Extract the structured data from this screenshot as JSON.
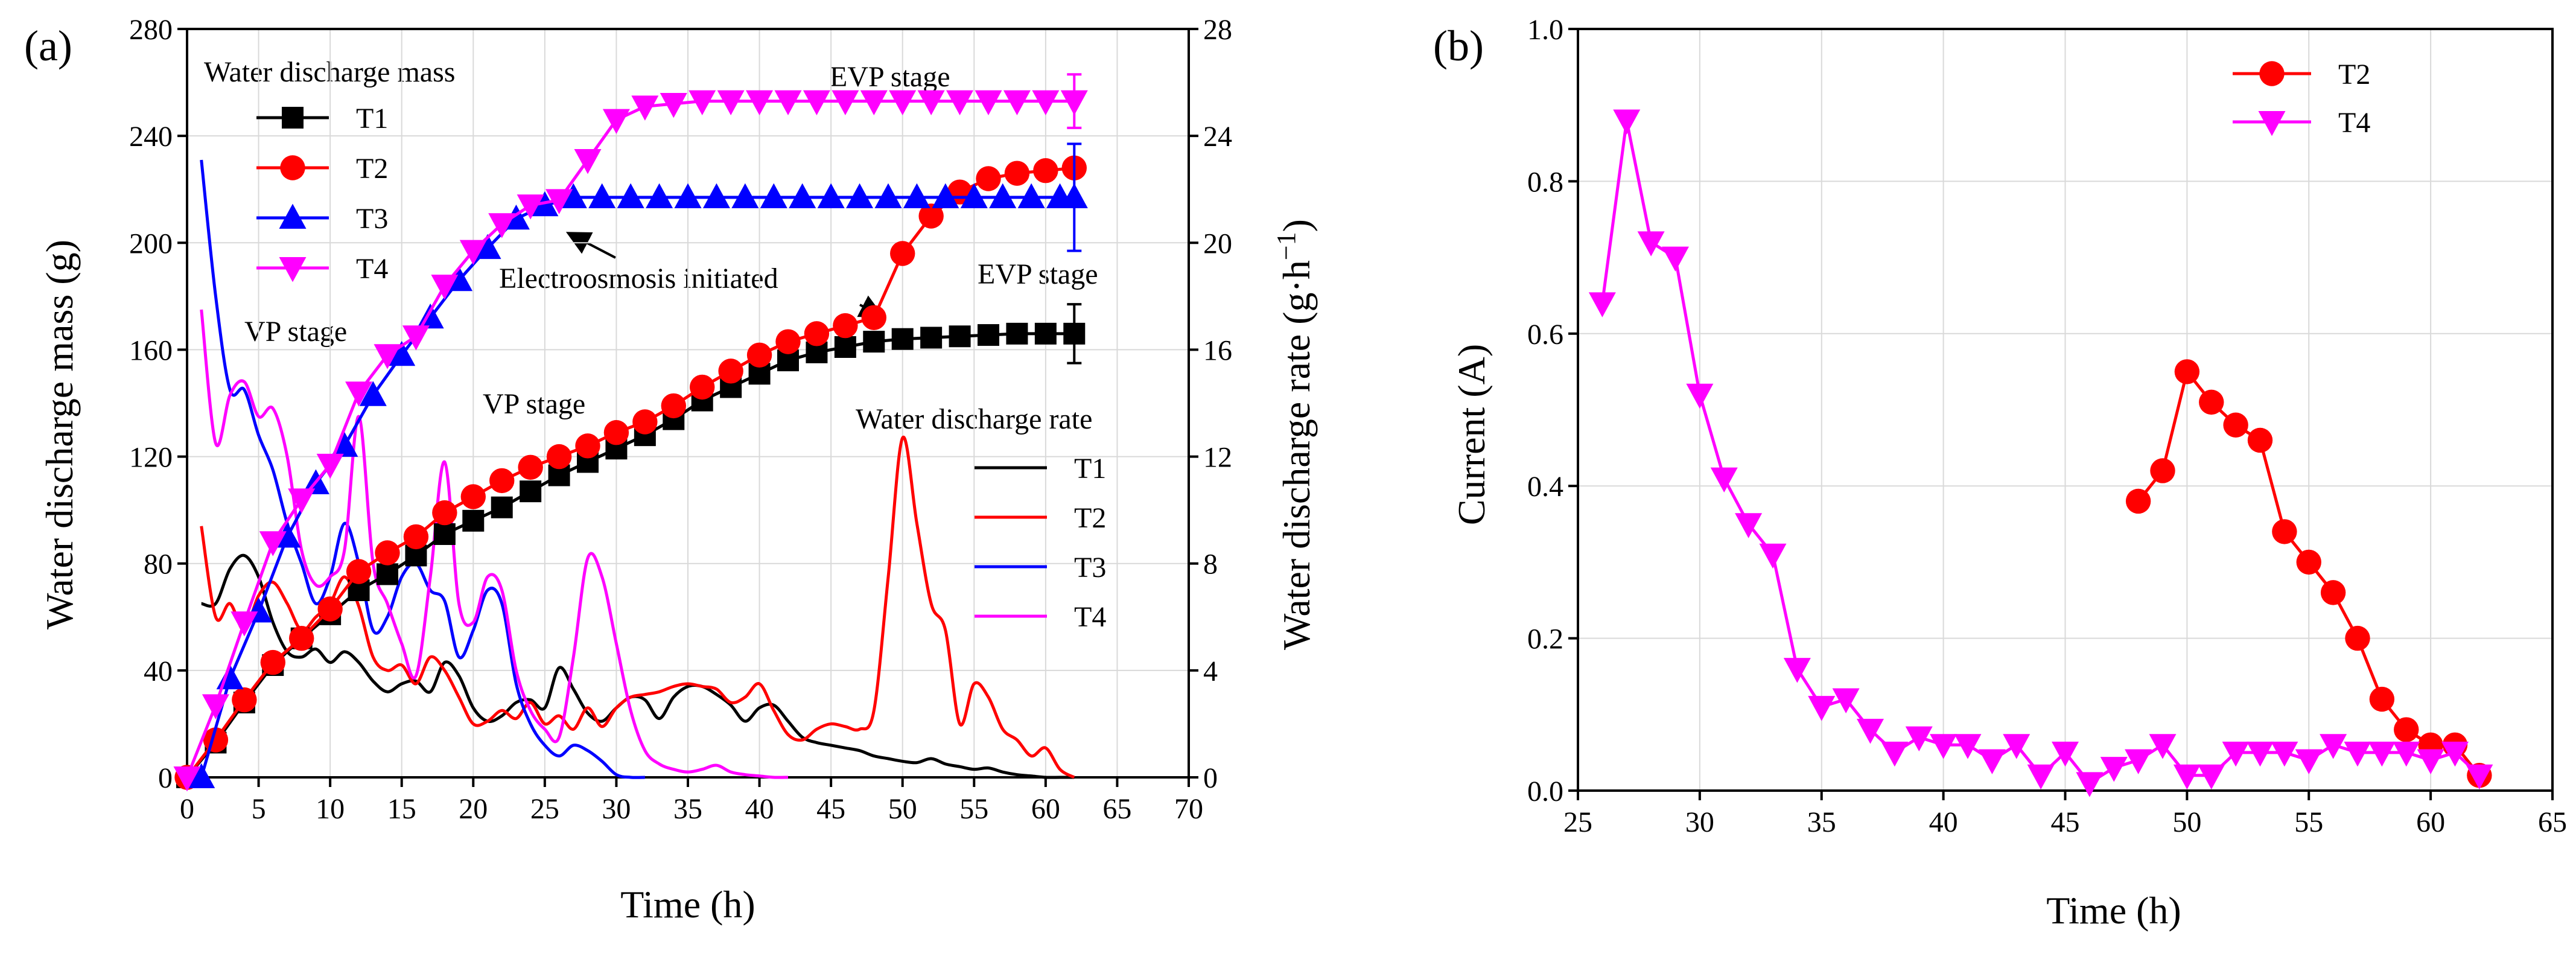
{
  "colors": {
    "T1": "#000000",
    "T2": "#ff0000",
    "T3": "#0000ff",
    "T4": "#ff00ff",
    "grid": "#d9d9d9",
    "frame": "#000000"
  },
  "chart_data": [
    {
      "type": "line",
      "panel_label": "(a)",
      "xlabel": "Time (h)",
      "ylabel": "Water discharge mass (g)",
      "ylabel_right_base": "Water discharge rate (g·h",
      "ylabel_right_sup": "−1",
      "ylabel_right_end": ")",
      "xlim": [
        0,
        70
      ],
      "ylim": [
        0,
        280
      ],
      "ylim_right": [
        0,
        28
      ],
      "xticks": [
        "0",
        "5",
        "10",
        "15",
        "20",
        "25",
        "30",
        "35",
        "40",
        "45",
        "50",
        "55",
        "60",
        "65",
        "70"
      ],
      "yticks": [
        "0",
        "40",
        "80",
        "120",
        "160",
        "200",
        "240",
        "280"
      ],
      "yticks_right": [
        "0",
        "4",
        "8",
        "12",
        "16",
        "20",
        "24",
        "28"
      ],
      "grid": true,
      "legend_mass_title": "Water discharge mass",
      "legend_rate_title": "Water discharge rate",
      "annotations": {
        "evp_top": "EVP stage",
        "evp_mid": "EVP stage",
        "vp_left": "VP stage",
        "vp_mid": "VP stage",
        "electroosmosis": "Electroosmosis initiated"
      },
      "mass_series": [
        {
          "name": "T1",
          "marker": "square",
          "x": [
            0,
            2,
            4,
            6,
            8,
            10,
            12,
            14,
            16,
            18,
            20,
            22,
            24,
            26,
            28,
            30,
            32,
            34,
            36,
            38,
            40,
            42,
            44,
            46,
            48,
            50,
            52,
            54,
            56,
            58,
            60,
            62
          ],
          "y": [
            0,
            13,
            28,
            42,
            52,
            61,
            70,
            76,
            83,
            91,
            96,
            101,
            107,
            113,
            118,
            123,
            128,
            134,
            141,
            146,
            151,
            156,
            159,
            161,
            163,
            164,
            164.5,
            165,
            165.5,
            166,
            166,
            166
          ],
          "err_last": 11
        },
        {
          "name": "T2",
          "marker": "circle",
          "x": [
            0,
            2,
            4,
            6,
            8,
            10,
            12,
            14,
            16,
            18,
            20,
            22,
            24,
            26,
            28,
            30,
            32,
            34,
            36,
            38,
            40,
            42,
            44,
            46,
            48,
            50,
            52,
            54,
            56,
            58,
            60,
            62
          ],
          "y": [
            0,
            14,
            29,
            43,
            52,
            63,
            77,
            84,
            90,
            99,
            105,
            111,
            116,
            120,
            124,
            129,
            133,
            139,
            146,
            152,
            158,
            163,
            166,
            169,
            172,
            196,
            210,
            219,
            224,
            226,
            227,
            228
          ],
          "err_last": 0
        },
        {
          "name": "T3",
          "marker": "triangle-up",
          "x": [
            1,
            3,
            5,
            7,
            9,
            11,
            13,
            15,
            17,
            19,
            21,
            23,
            25,
            27,
            29,
            31,
            33,
            35,
            37,
            39,
            41,
            43,
            45,
            47,
            49,
            51,
            53,
            55,
            57,
            59,
            61,
            62
          ],
          "y": [
            0,
            37,
            62,
            90,
            110,
            124,
            143,
            158,
            172,
            186,
            198,
            209,
            214,
            217,
            217,
            217,
            217,
            217,
            217,
            217,
            217,
            217,
            217,
            217,
            217,
            217,
            217,
            217,
            217,
            217,
            217,
            217
          ],
          "err_last": 20
        },
        {
          "name": "T4",
          "marker": "triangle-down",
          "x": [
            0,
            2,
            4,
            6,
            8,
            10,
            12,
            14,
            16,
            18,
            20,
            22,
            24,
            26,
            28,
            30,
            32,
            34,
            36,
            38,
            40,
            42,
            44,
            46,
            48,
            50,
            52,
            54,
            56,
            58,
            60,
            62
          ],
          "y": [
            0,
            27,
            58,
            88,
            104,
            117,
            144,
            158,
            165,
            184,
            197,
            207,
            214,
            216,
            231,
            246,
            251,
            252,
            253,
            253,
            253,
            253,
            253,
            253,
            253,
            253,
            253,
            253,
            253,
            253,
            253,
            253
          ],
          "err_last": 10
        }
      ],
      "rate_series": [
        {
          "name": "T1",
          "x": [
            1,
            2,
            3,
            4,
            5,
            6,
            7,
            8,
            9,
            10,
            11,
            12,
            13,
            14,
            15,
            16,
            17,
            18,
            19,
            20,
            21,
            22,
            23,
            24,
            25,
            26,
            27,
            28,
            29,
            30,
            31,
            32,
            33,
            34,
            35,
            36,
            37,
            38,
            39,
            40,
            41,
            42,
            43,
            44,
            45,
            46,
            47,
            48,
            49,
            50,
            51,
            52,
            53,
            54,
            55,
            56,
            57,
            58,
            59,
            60,
            61,
            62
          ],
          "y": [
            6.5,
            6.5,
            7.8,
            8.3,
            7.5,
            5.8,
            4.7,
            4.5,
            4.8,
            4.3,
            4.7,
            4.3,
            3.6,
            3.2,
            3.5,
            3.6,
            3.2,
            4.3,
            3.8,
            2.6,
            2.1,
            2.3,
            2.8,
            2.9,
            2.6,
            4.1,
            3.3,
            2.4,
            2.1,
            2.6,
            3.0,
            2.9,
            2.2,
            3.0,
            3.4,
            3.4,
            3.1,
            2.7,
            2.1,
            2.6,
            2.7,
            2.1,
            1.5,
            1.3,
            1.2,
            1.1,
            1.0,
            0.8,
            0.7,
            0.6,
            0.55,
            0.7,
            0.5,
            0.4,
            0.3,
            0.35,
            0.2,
            0.1,
            0.05,
            0,
            0,
            0
          ]
        },
        {
          "name": "T2",
          "x": [
            1,
            2,
            3,
            4,
            5,
            6,
            7,
            8,
            9,
            10,
            11,
            12,
            13,
            14,
            15,
            16,
            17,
            18,
            19,
            20,
            21,
            22,
            23,
            24,
            25,
            26,
            27,
            28,
            29,
            30,
            31,
            32,
            33,
            34,
            35,
            36,
            37,
            38,
            39,
            40,
            41,
            42,
            43,
            44,
            45,
            46,
            47,
            48,
            49,
            50,
            51,
            52,
            53,
            54,
            55,
            56,
            57,
            58,
            59,
            60,
            61,
            62
          ],
          "y": [
            9.4,
            6.0,
            6.5,
            5.5,
            6.8,
            7.3,
            6.5,
            5.5,
            6.0,
            6.5,
            7.5,
            6.4,
            4.5,
            4.0,
            4.2,
            3.5,
            4.5,
            4.0,
            3.0,
            2.0,
            2.1,
            2.5,
            2.2,
            2.8,
            2.0,
            2.3,
            1.8,
            2.6,
            1.9,
            2.6,
            3.0,
            3.1,
            3.2,
            3.4,
            3.5,
            3.4,
            3.3,
            2.8,
            3.0,
            3.5,
            2.5,
            1.6,
            1.4,
            1.8,
            2.0,
            1.9,
            1.8,
            2.5,
            7.5,
            12.7,
            9.5,
            6.5,
            5.5,
            2.0,
            3.5,
            3.0,
            1.8,
            1.4,
            0.8,
            1.1,
            0.3,
            0
          ]
        },
        {
          "name": "T3",
          "x": [
            1,
            2,
            3,
            4,
            5,
            6,
            7,
            8,
            9,
            10,
            11,
            12,
            13,
            14,
            15,
            16,
            17,
            18,
            19,
            20,
            21,
            22,
            23,
            24,
            25,
            26,
            27,
            28,
            29,
            30,
            31,
            32
          ],
          "y": [
            23.1,
            18.0,
            14.5,
            14.5,
            12.8,
            11.5,
            9.5,
            8.0,
            6.5,
            7.5,
            9.5,
            8.0,
            5.5,
            6.0,
            7.5,
            8.0,
            7.0,
            6.6,
            4.5,
            5.5,
            7.0,
            6.5,
            3.5,
            2.0,
            1.2,
            0.8,
            1.2,
            1.0,
            0.6,
            0.1,
            0,
            0
          ]
        },
        {
          "name": "T4",
          "x": [
            1,
            2,
            3,
            4,
            5,
            6,
            7,
            8,
            9,
            10,
            11,
            12,
            13,
            14,
            15,
            16,
            17,
            18,
            19,
            20,
            21,
            22,
            23,
            24,
            25,
            26,
            27,
            28,
            29,
            30,
            31,
            32,
            33,
            34,
            35,
            36,
            37,
            38,
            39,
            40,
            41,
            42
          ],
          "y": [
            17.5,
            12.5,
            14.3,
            14.8,
            13.5,
            13.8,
            12.0,
            8.5,
            7.2,
            7.5,
            8.5,
            13.5,
            8.0,
            6.5,
            5.0,
            3.8,
            7.5,
            11.8,
            6.5,
            5.8,
            7.5,
            7.0,
            4.0,
            2.5,
            1.8,
            1.5,
            4.5,
            8.2,
            7.5,
            5.0,
            2.5,
            1.0,
            0.5,
            0.3,
            0.2,
            0.3,
            0.45,
            0.2,
            0.1,
            0.05,
            0,
            0
          ]
        }
      ]
    },
    {
      "type": "line",
      "panel_label": "(b)",
      "xlabel": "Time (h)",
      "ylabel": "Current (A)",
      "xlim": [
        25,
        65
      ],
      "ylim": [
        0,
        1.0
      ],
      "xticks": [
        "25",
        "30",
        "35",
        "40",
        "45",
        "50",
        "55",
        "60",
        "65"
      ],
      "yticks": [
        "0.0",
        "0.2",
        "0.4",
        "0.6",
        "0.8",
        "1.0"
      ],
      "grid": true,
      "series": [
        {
          "name": "T2",
          "marker": "circle",
          "x": [
            48,
            49,
            50,
            51,
            52,
            53,
            54,
            55,
            56,
            57,
            58,
            59,
            60,
            61,
            62
          ],
          "y": [
            0.38,
            0.42,
            0.55,
            0.51,
            0.48,
            0.46,
            0.34,
            0.3,
            0.26,
            0.2,
            0.12,
            0.08,
            0.06,
            0.06,
            0.02
          ]
        },
        {
          "name": "T4",
          "marker": "triangle-down",
          "x": [
            26,
            27,
            28,
            29,
            30,
            31,
            32,
            33,
            34,
            35,
            36,
            37,
            38,
            39,
            40,
            41,
            42,
            43,
            44,
            45,
            46,
            47,
            48,
            49,
            50,
            51,
            52,
            53,
            54,
            55,
            56,
            57,
            58,
            59,
            60,
            61,
            62
          ],
          "y": [
            0.64,
            0.88,
            0.72,
            0.7,
            0.52,
            0.41,
            0.35,
            0.31,
            0.16,
            0.11,
            0.12,
            0.08,
            0.05,
            0.07,
            0.06,
            0.06,
            0.04,
            0.06,
            0.02,
            0.05,
            0.01,
            0.03,
            0.04,
            0.06,
            0.02,
            0.02,
            0.05,
            0.05,
            0.05,
            0.04,
            0.06,
            0.05,
            0.05,
            0.05,
            0.04,
            0.05,
            0.02
          ]
        }
      ]
    }
  ]
}
